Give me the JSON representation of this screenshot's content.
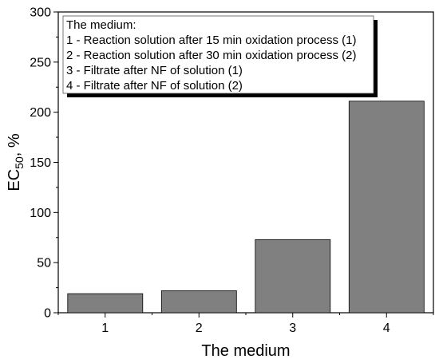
{
  "chart_data": {
    "type": "bar",
    "categories": [
      "1",
      "2",
      "3",
      "4"
    ],
    "values": [
      19,
      22,
      73,
      211
    ],
    "xlabel": "The medium",
    "ylabel": {
      "main": "EC",
      "sub": "50",
      "suffix": ", %"
    },
    "ylim": [
      0,
      300
    ],
    "yticks": [
      "0",
      "50",
      "100",
      "150",
      "200",
      "250",
      "300"
    ],
    "bar_color": "#808080",
    "grid": false,
    "legend": {
      "placement": "top-left",
      "lines": [
        "The medium:",
        "1 - Reaction solution after 15 min oxidation process (1)",
        "2 - Reaction solution after 30 min oxidation process (2)",
        "3 - Filtrate after NF of solution (1)",
        "4 - Filtrate after NF of solution (2)"
      ]
    }
  }
}
